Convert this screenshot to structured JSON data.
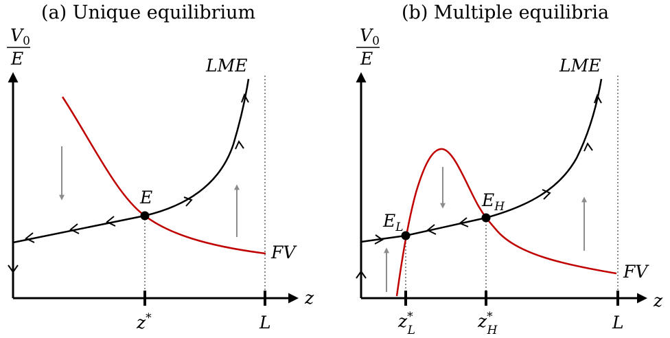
{
  "panel_a": {
    "title": "(a) Unique equilibrium",
    "y_label_num": "V",
    "y_label_num_sub": "0",
    "y_label_den": "E",
    "x_label": "z",
    "curve_lme_label": "LME",
    "curve_fv_label": "FV",
    "point_label": "E",
    "tick_z": "z",
    "tick_z_sup": "*",
    "tick_L": "L"
  },
  "panel_b": {
    "title": "(b) Multiple equilibria",
    "y_label_num": "V",
    "y_label_num_sub": "0",
    "y_label_den": "E",
    "x_label": "z",
    "curve_lme_label": "LME",
    "curve_fv_label": "FV",
    "point_low_label": "E",
    "point_low_sub": "L",
    "point_high_label": "E",
    "point_high_sub": "H",
    "tick_zl": "z",
    "tick_zl_sup": "*",
    "tick_zl_sub": "L",
    "tick_zh": "z",
    "tick_zh_sup": "*",
    "tick_zh_sub": "H",
    "tick_L": "L"
  },
  "colors": {
    "lme": "#000000",
    "fv": "#c00000",
    "guide": "#8a8a8a",
    "flow_arrows": "#8c8c8c"
  }
}
